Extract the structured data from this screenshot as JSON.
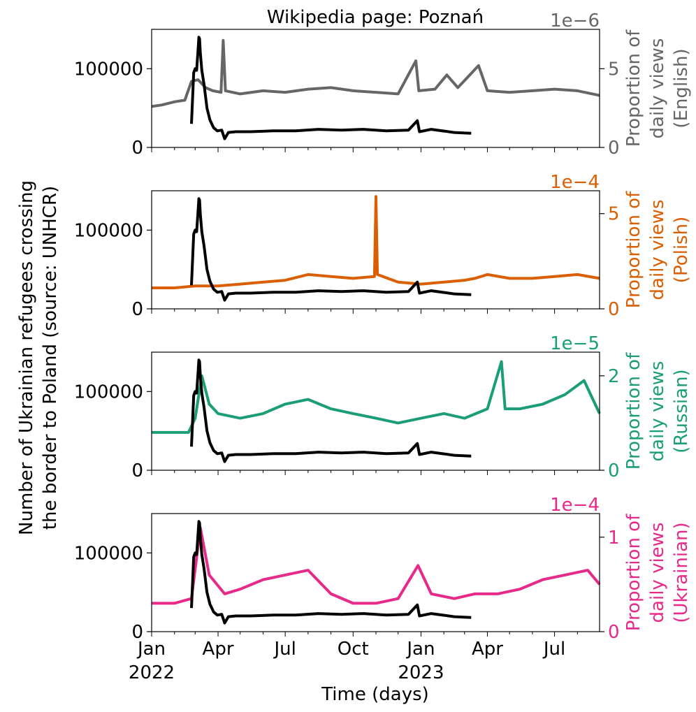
{
  "title": "Wikipedia page: Poznań",
  "left_ylabel": "Number of Ukrainian refugees crossing\nthe border to Poland (source: UNHCR)",
  "xlabel": "Time (days)",
  "x_tick_labels": [
    {
      "date": "2022-01-01",
      "label": "Jan",
      "sub": "2022"
    },
    {
      "date": "2022-04-01",
      "label": "Apr",
      "sub": ""
    },
    {
      "date": "2022-07-01",
      "label": "Jul",
      "sub": ""
    },
    {
      "date": "2022-10-01",
      "label": "Oct",
      "sub": ""
    },
    {
      "date": "2023-01-01",
      "label": "Jan",
      "sub": "2023"
    },
    {
      "date": "2023-04-01",
      "label": "Apr",
      "sub": ""
    },
    {
      "date": "2023-07-01",
      "label": "Jul",
      "sub": ""
    }
  ],
  "colors": {
    "refugees": "#000000",
    "english": "#666666",
    "polish": "#d95f02",
    "russian": "#1b9e77",
    "ukrainian": "#e7298a"
  },
  "chart_data": {
    "type": "line",
    "x_range": [
      "2022-01-01",
      "2023-08-31"
    ],
    "refugees_series": {
      "ylim": [
        0,
        150000
      ],
      "yticks": [
        0,
        100000
      ],
      "points": [
        [
          "2022-02-24",
          30000
        ],
        [
          "2022-02-27",
          95000
        ],
        [
          "2022-03-01",
          100000
        ],
        [
          "2022-03-03",
          98000
        ],
        [
          "2022-03-05",
          125000
        ],
        [
          "2022-03-06",
          140000
        ],
        [
          "2022-03-07",
          138000
        ],
        [
          "2022-03-08",
          120000
        ],
        [
          "2022-03-10",
          98000
        ],
        [
          "2022-03-13",
          80000
        ],
        [
          "2022-03-17",
          50000
        ],
        [
          "2022-03-21",
          35000
        ],
        [
          "2022-03-26",
          25000
        ],
        [
          "2022-03-31",
          21000
        ],
        [
          "2022-04-06",
          22000
        ],
        [
          "2022-04-10",
          11000
        ],
        [
          "2022-04-15",
          19000
        ],
        [
          "2022-04-25",
          20000
        ],
        [
          "2022-05-15",
          20000
        ],
        [
          "2022-06-15",
          21000
        ],
        [
          "2022-07-15",
          21000
        ],
        [
          "2022-08-15",
          23000
        ],
        [
          "2022-09-15",
          22000
        ],
        [
          "2022-10-15",
          23000
        ],
        [
          "2022-11-15",
          21000
        ],
        [
          "2022-12-15",
          22000
        ],
        [
          "2022-12-27",
          34000
        ],
        [
          "2022-12-30",
          20000
        ],
        [
          "2023-01-15",
          23000
        ],
        [
          "2023-02-15",
          19000
        ],
        [
          "2023-03-10",
          18000
        ]
      ]
    },
    "panels": [
      {
        "name": "english",
        "right_label": "Proportion of\ndaily views\n(English)",
        "offset_label": "1e−6",
        "ylim": [
          0,
          7.5
        ],
        "yticks": [
          0,
          5
        ],
        "points": [
          [
            "2022-01-01",
            2.6
          ],
          [
            "2022-01-15",
            2.7
          ],
          [
            "2022-02-01",
            2.9
          ],
          [
            "2022-02-15",
            3.0
          ],
          [
            "2022-02-24",
            4.2
          ],
          [
            "2022-03-05",
            4.3
          ],
          [
            "2022-03-15",
            3.8
          ],
          [
            "2022-03-25",
            3.6
          ],
          [
            "2022-04-05",
            3.5
          ],
          [
            "2022-04-08",
            6.8
          ],
          [
            "2022-04-11",
            3.6
          ],
          [
            "2022-05-01",
            3.4
          ],
          [
            "2022-06-01",
            3.6
          ],
          [
            "2022-07-01",
            3.5
          ],
          [
            "2022-08-01",
            3.7
          ],
          [
            "2022-09-01",
            3.8
          ],
          [
            "2022-10-01",
            3.6
          ],
          [
            "2022-11-01",
            3.5
          ],
          [
            "2022-12-01",
            3.4
          ],
          [
            "2022-12-25",
            5.5
          ],
          [
            "2022-12-29",
            3.6
          ],
          [
            "2023-01-20",
            3.7
          ],
          [
            "2023-02-05",
            4.6
          ],
          [
            "2023-02-20",
            3.8
          ],
          [
            "2023-03-10",
            4.7
          ],
          [
            "2023-03-20",
            5.2
          ],
          [
            "2023-04-01",
            3.6
          ],
          [
            "2023-05-01",
            3.5
          ],
          [
            "2023-06-01",
            3.6
          ],
          [
            "2023-07-01",
            3.7
          ],
          [
            "2023-08-01",
            3.6
          ],
          [
            "2023-08-31",
            3.3
          ]
        ]
      },
      {
        "name": "polish",
        "right_label": "Proportion of\ndaily views\n(Polish)",
        "offset_label": "1e−4",
        "ylim": [
          0,
          6.2
        ],
        "yticks": [
          0,
          5
        ],
        "points": [
          [
            "2022-01-01",
            1.1
          ],
          [
            "2022-02-01",
            1.1
          ],
          [
            "2022-03-01",
            1.2
          ],
          [
            "2022-04-01",
            1.2
          ],
          [
            "2022-05-01",
            1.3
          ],
          [
            "2022-06-01",
            1.4
          ],
          [
            "2022-07-01",
            1.5
          ],
          [
            "2022-08-01",
            1.8
          ],
          [
            "2022-09-01",
            1.7
          ],
          [
            "2022-10-01",
            1.6
          ],
          [
            "2022-10-30",
            1.7
          ],
          [
            "2022-11-01",
            5.9
          ],
          [
            "2022-11-03",
            1.8
          ],
          [
            "2022-12-01",
            1.4
          ],
          [
            "2023-01-01",
            1.3
          ],
          [
            "2023-02-01",
            1.4
          ],
          [
            "2023-03-01",
            1.5
          ],
          [
            "2023-03-15",
            1.6
          ],
          [
            "2023-04-01",
            1.8
          ],
          [
            "2023-05-01",
            1.6
          ],
          [
            "2023-06-01",
            1.6
          ],
          [
            "2023-07-01",
            1.7
          ],
          [
            "2023-08-01",
            1.8
          ],
          [
            "2023-08-31",
            1.6
          ]
        ]
      },
      {
        "name": "russian",
        "right_label": "Proportion of\ndaily views\n(Russian)",
        "offset_label": "1e−5",
        "ylim": [
          0,
          2.5
        ],
        "yticks": [
          0,
          2
        ],
        "points": [
          [
            "2022-01-01",
            0.8
          ],
          [
            "2022-02-01",
            0.8
          ],
          [
            "2022-02-20",
            0.8
          ],
          [
            "2022-03-01",
            1.1
          ],
          [
            "2022-03-10",
            2.0
          ],
          [
            "2022-03-20",
            1.4
          ],
          [
            "2022-04-01",
            1.2
          ],
          [
            "2022-05-01",
            1.1
          ],
          [
            "2022-06-01",
            1.2
          ],
          [
            "2022-07-01",
            1.4
          ],
          [
            "2022-08-01",
            1.5
          ],
          [
            "2022-09-01",
            1.3
          ],
          [
            "2022-10-01",
            1.2
          ],
          [
            "2022-11-01",
            1.1
          ],
          [
            "2022-12-01",
            1.0
          ],
          [
            "2023-01-01",
            1.1
          ],
          [
            "2023-02-01",
            1.2
          ],
          [
            "2023-03-01",
            1.1
          ],
          [
            "2023-04-01",
            1.3
          ],
          [
            "2023-04-20",
            2.3
          ],
          [
            "2023-04-25",
            1.3
          ],
          [
            "2023-05-15",
            1.3
          ],
          [
            "2023-06-15",
            1.4
          ],
          [
            "2023-07-15",
            1.6
          ],
          [
            "2023-08-10",
            1.9
          ],
          [
            "2023-08-31",
            1.2
          ]
        ]
      },
      {
        "name": "ukrainian",
        "right_label": "Proportion of\ndaily views\n(Ukrainian)",
        "offset_label": "1e−4",
        "ylim": [
          0,
          1.25
        ],
        "yticks": [
          0,
          1
        ],
        "points": [
          [
            "2022-01-01",
            0.3
          ],
          [
            "2022-02-01",
            0.3
          ],
          [
            "2022-02-24",
            0.35
          ],
          [
            "2022-03-08",
            1.1
          ],
          [
            "2022-03-20",
            0.6
          ],
          [
            "2022-04-10",
            0.4
          ],
          [
            "2022-05-01",
            0.45
          ],
          [
            "2022-06-01",
            0.55
          ],
          [
            "2022-07-01",
            0.6
          ],
          [
            "2022-08-01",
            0.65
          ],
          [
            "2022-09-01",
            0.4
          ],
          [
            "2022-10-01",
            0.3
          ],
          [
            "2022-11-01",
            0.3
          ],
          [
            "2022-12-01",
            0.35
          ],
          [
            "2022-12-28",
            0.7
          ],
          [
            "2023-01-15",
            0.4
          ],
          [
            "2023-02-15",
            0.35
          ],
          [
            "2023-03-15",
            0.4
          ],
          [
            "2023-04-15",
            0.4
          ],
          [
            "2023-05-15",
            0.45
          ],
          [
            "2023-06-15",
            0.55
          ],
          [
            "2023-07-15",
            0.6
          ],
          [
            "2023-08-15",
            0.65
          ],
          [
            "2023-08-31",
            0.5
          ]
        ]
      }
    ]
  }
}
